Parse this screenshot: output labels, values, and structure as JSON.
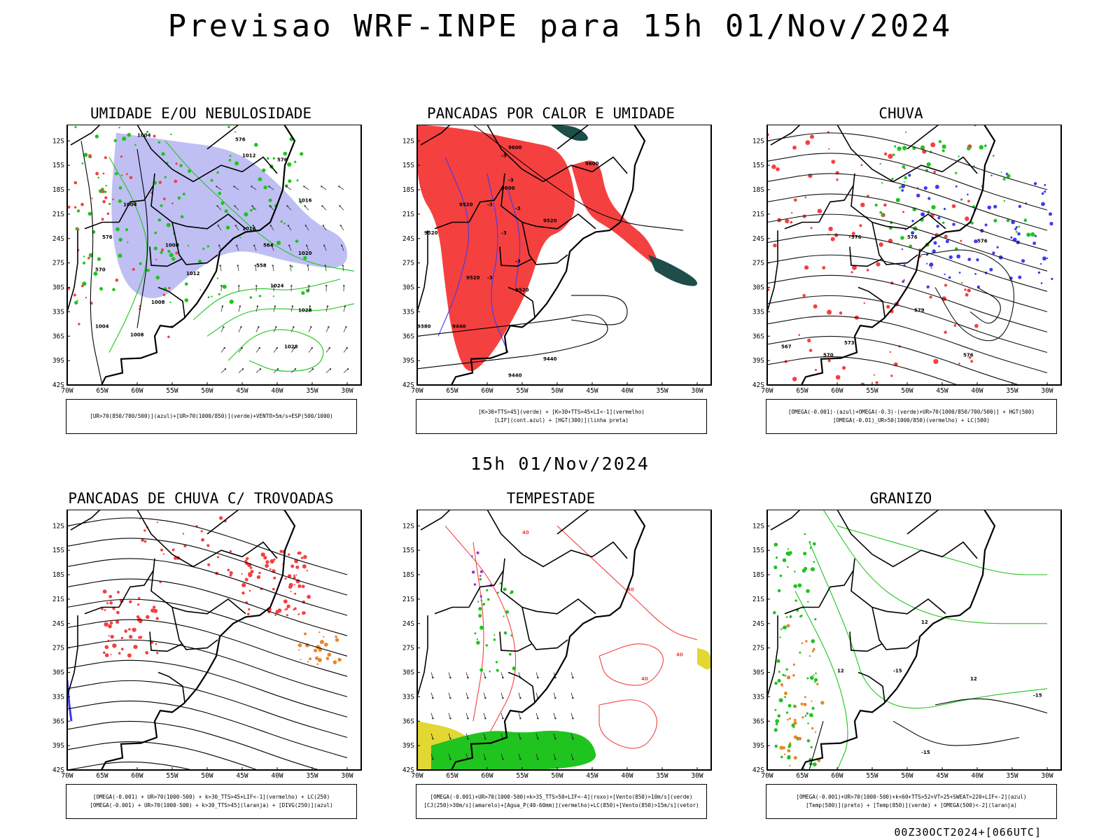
{
  "page_title": "Previsao WRF-INPE  para 15h 01/Nov/2024",
  "mid_date": "15h 01/Nov/2024",
  "run_id": "00Z30OCT2024+[066UTC]",
  "chart_data": {
    "type": "map",
    "lat_ticks": [
      "12S",
      "15S",
      "18S",
      "21S",
      "24S",
      "27S",
      "30S",
      "33S",
      "36S",
      "39S",
      "42S"
    ],
    "lon_ticks": [
      "70W",
      "65W",
      "60W",
      "55W",
      "50W",
      "45W",
      "40W",
      "35W",
      "30W"
    ],
    "lat_range": [
      -42,
      -10
    ],
    "lon_range": [
      -70,
      -28
    ],
    "colors": {
      "azul": "#3b3bf5",
      "verde": "#1fc41f",
      "vermelho": "#f54040",
      "laranja": "#e8862a",
      "amarelo": "#e2d733",
      "roxo": "#9b30d0",
      "lilac": "#aaaaf0",
      "darkgreen": "#1e4d4a"
    },
    "panels": [
      {
        "key": "umidade",
        "title": "UMIDADE E/OU NEBULOSIDADE",
        "legend": [
          "[UR>70(850/700/500)](azul)+[UR>70(1000/850)](verde)+VENTO>5m/s+ESP(500/1000)"
        ],
        "contour_labels": [
          "1004",
          "1012",
          "1016",
          "1004",
          "1008",
          "1016",
          "1020",
          "1012",
          "1024",
          "1008",
          "1028",
          "1028",
          "1004",
          "1008",
          "576",
          "576",
          "576",
          "564",
          "558",
          "570"
        ]
      },
      {
        "key": "pancadas_calor",
        "title": "PANCADAS POR CALOR E UMIDADE",
        "legend": [
          "[K>30+TTS>45](verde) + [K>30+TTS>45+LI<-1](vermelho)",
          "[LIF](cont.azul) + [HGT(300)](linha preta)"
        ],
        "contour_labels": [
          "9600",
          "9600",
          "9600",
          "9520",
          "9520",
          "9520",
          "9520",
          "9440",
          "9380",
          "9440",
          "9440",
          "9520",
          "-3",
          "-3",
          "-3",
          "-3",
          "-3",
          "-3",
          "-3"
        ]
      },
      {
        "key": "chuva",
        "title": "CHUVA",
        "legend": [
          "[OMEGA(-0.001)-(azul)+OMEGA(-0.3)-(verde)+UR>70(1000/850/700/500)] + HGT(500)",
          "[OMEGA(-0.01)_UR>50(1000/850)(vermelho) + LC(500)"
        ],
        "contour_labels": [
          "576",
          "576",
          "576",
          "579",
          "573",
          "570",
          "567",
          "576"
        ]
      },
      {
        "key": "pancadas_trovoadas",
        "title": "PANCADAS DE CHUVA C/ TROVOADAS",
        "legend": [
          "[OMEGA(-0.001) + UR>70(1000-500) + k>30_TTS>45+LIF<-1](vermelho) + LC(250)",
          "[OMEGA(-0.001) + UR>70(1000-500) + k>30_TTS>45](laranja) + [DIVG(250)](azul)"
        ],
        "contour_labels": []
      },
      {
        "key": "tempestade",
        "title": "TEMPESTADE",
        "legend": [
          "[OMEGA(-0.001)+UR>70(1000-500)+k>35_TTS>50+LIF<-4](roxo)+[Vento(850)>10m/s](verde)",
          "[CJ(250)>30m/s](amarelo)+[Agua_P(40-60mm)](vermelho)+LC(850)+[Vento(850)>15m/s](vetor)"
        ],
        "contour_labels": [
          "40",
          "40",
          "40",
          "40"
        ]
      },
      {
        "key": "granizo",
        "title": "GRANIZO",
        "legend": [
          "[OMEGA(-0.001)+UR>70(1000-500)+k<60+TTS>52+VT>25+SWEAT>220+LIF<-2](azul)",
          "[Temp(500)](preto) + [Temp(850)](verde) + [OMEGA(500)<-2](laranja)"
        ],
        "contour_labels": [
          "-15",
          "-15",
          "-15",
          "12",
          "12",
          "12"
        ]
      }
    ]
  }
}
